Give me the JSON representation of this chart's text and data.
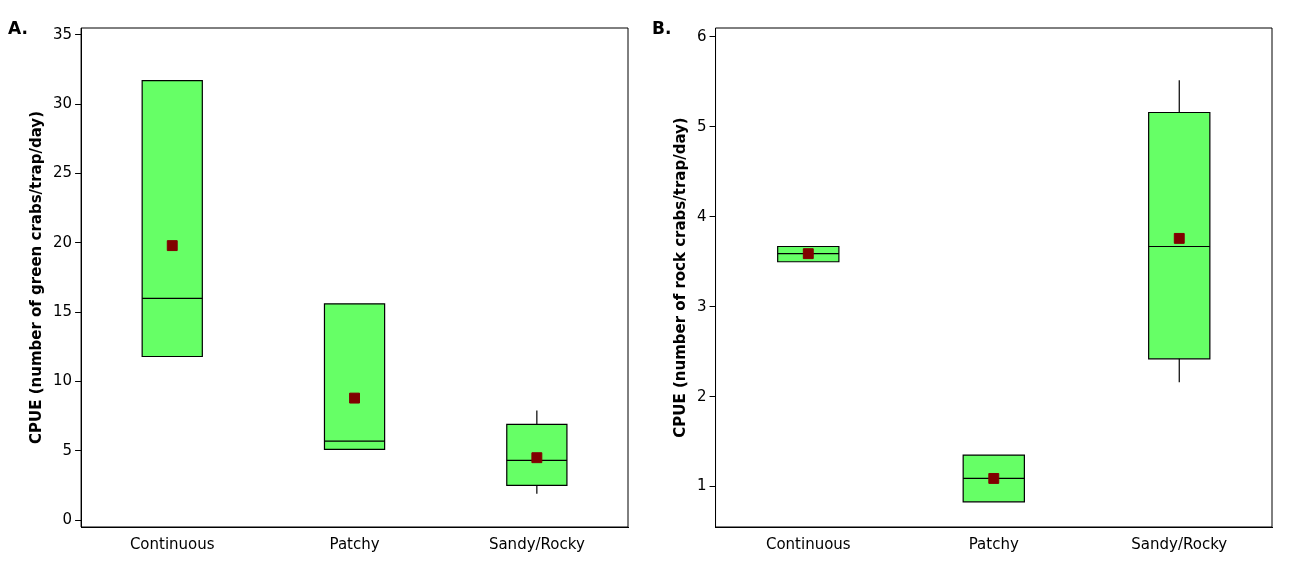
{
  "chart_data": [
    {
      "type": "box",
      "title": "A.",
      "ylabel": "CPUE (number of green crabs/trap/day)",
      "categories": [
        "Continuous",
        "Patchy",
        "Sandy/Rocky"
      ],
      "ylim": [
        -0.5,
        35.5
      ],
      "yticks": [
        0,
        5,
        10,
        15,
        20,
        25,
        30,
        35
      ],
      "grid": false,
      "marker": "square",
      "series": [
        {
          "color": "#66ff66",
          "boxes": [
            {
              "low": 11.8,
              "q1": 11.8,
              "median": 16,
              "q3": 31.7,
              "high": 31.7,
              "mean": 19.8
            },
            {
              "low": 5.1,
              "q1": 5.1,
              "median": 5.7,
              "q3": 15.6,
              "high": 15.6,
              "mean": 8.8
            },
            {
              "low": 1.9,
              "q1": 2.5,
              "median": 4.3,
              "q3": 6.9,
              "high": 7.9,
              "mean": 4.5
            }
          ]
        }
      ]
    },
    {
      "type": "box",
      "title": "B.",
      "ylabel": "CPUE (number of rock crabs/trap/day)",
      "categories": [
        "Continuous",
        "Patchy",
        "Sandy/Rocky"
      ],
      "ylim": [
        0.55,
        6.1
      ],
      "yticks": [
        1,
        2,
        3,
        4,
        5,
        6
      ],
      "grid": false,
      "marker": "square",
      "series": [
        {
          "color": "#66ff66",
          "boxes": [
            {
              "low": 3.5,
              "q1": 3.5,
              "median": 3.59,
              "q3": 3.67,
              "high": 3.67,
              "mean": 3.59
            },
            {
              "low": 0.83,
              "q1": 0.83,
              "median": 1.09,
              "q3": 1.35,
              "high": 1.35,
              "mean": 1.09
            },
            {
              "low": 2.16,
              "q1": 2.42,
              "median": 3.67,
              "q3": 5.16,
              "high": 5.52,
              "mean": 3.76
            }
          ]
        }
      ]
    }
  ]
}
